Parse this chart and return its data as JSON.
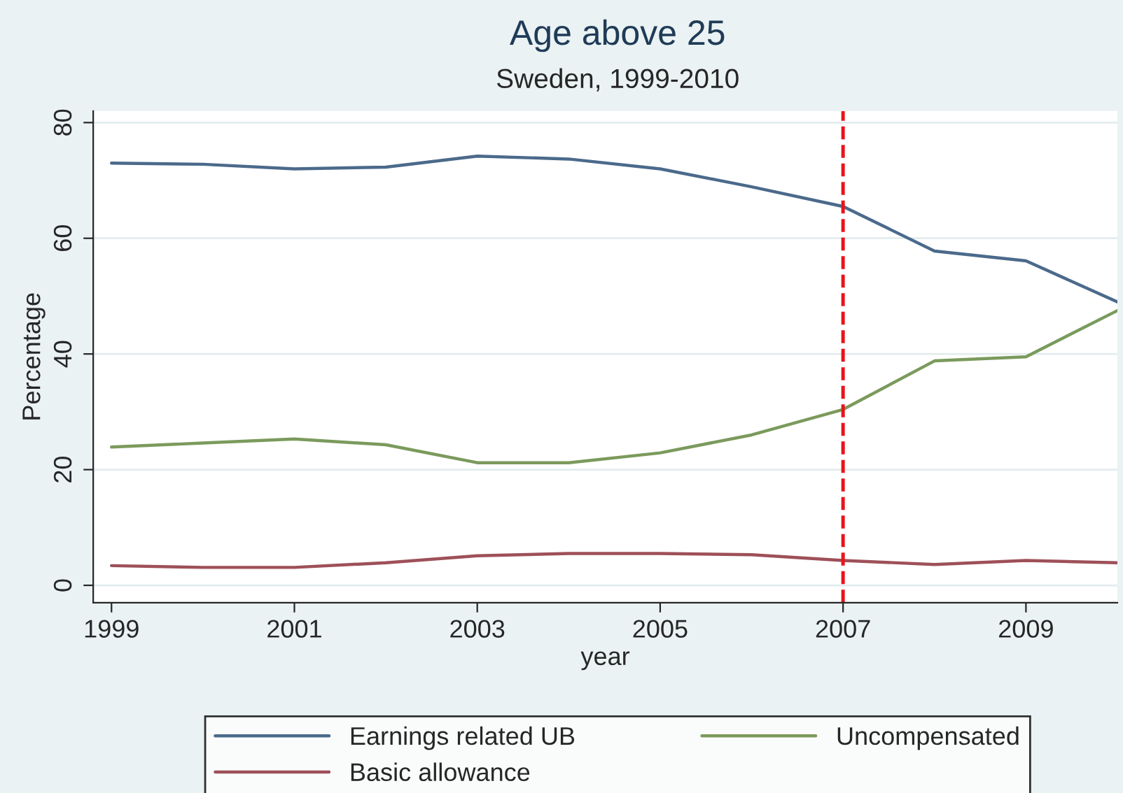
{
  "chart_data": {
    "type": "line",
    "title": "Age above 25",
    "subtitle": "Sweden, 1999-2010",
    "xlabel": "year",
    "ylabel": "Percentage",
    "x": [
      1999,
      2000,
      2001,
      2002,
      2003,
      2004,
      2005,
      2006,
      2007,
      2008,
      2009,
      2010
    ],
    "series": [
      {
        "name": "Earnings related UB",
        "color": "#4b6a8b",
        "values": [
          73,
          72.8,
          72,
          72.3,
          74.2,
          73.7,
          72,
          68.9,
          65.5,
          57.8,
          56.1,
          49
        ]
      },
      {
        "name": "Basic allowance",
        "color": "#9e5058",
        "values": [
          3.4,
          3.1,
          3.1,
          3.9,
          5.1,
          5.5,
          5.5,
          5.3,
          4.3,
          3.6,
          4.3,
          3.9
        ]
      },
      {
        "name": "Uncompensated",
        "color": "#7b9a5c",
        "values": [
          23.9,
          24.6,
          25.3,
          24.3,
          21.2,
          21.2,
          22.9,
          26,
          30.4,
          38.8,
          39.5,
          47.5
        ]
      }
    ],
    "xlim": [
      1998.8,
      2010
    ],
    "ylim": [
      -3,
      82
    ],
    "xticks": [
      1999,
      2001,
      2003,
      2005,
      2007,
      2009
    ],
    "yticks": [
      0,
      20,
      40,
      60,
      80
    ],
    "ref_lines": [
      {
        "axis": "x",
        "value": 2007,
        "color": "#e8141b",
        "line_style": "dashed"
      }
    ],
    "grid": "y",
    "legend": "bottom",
    "marker": "none",
    "line_style": "solid"
  }
}
